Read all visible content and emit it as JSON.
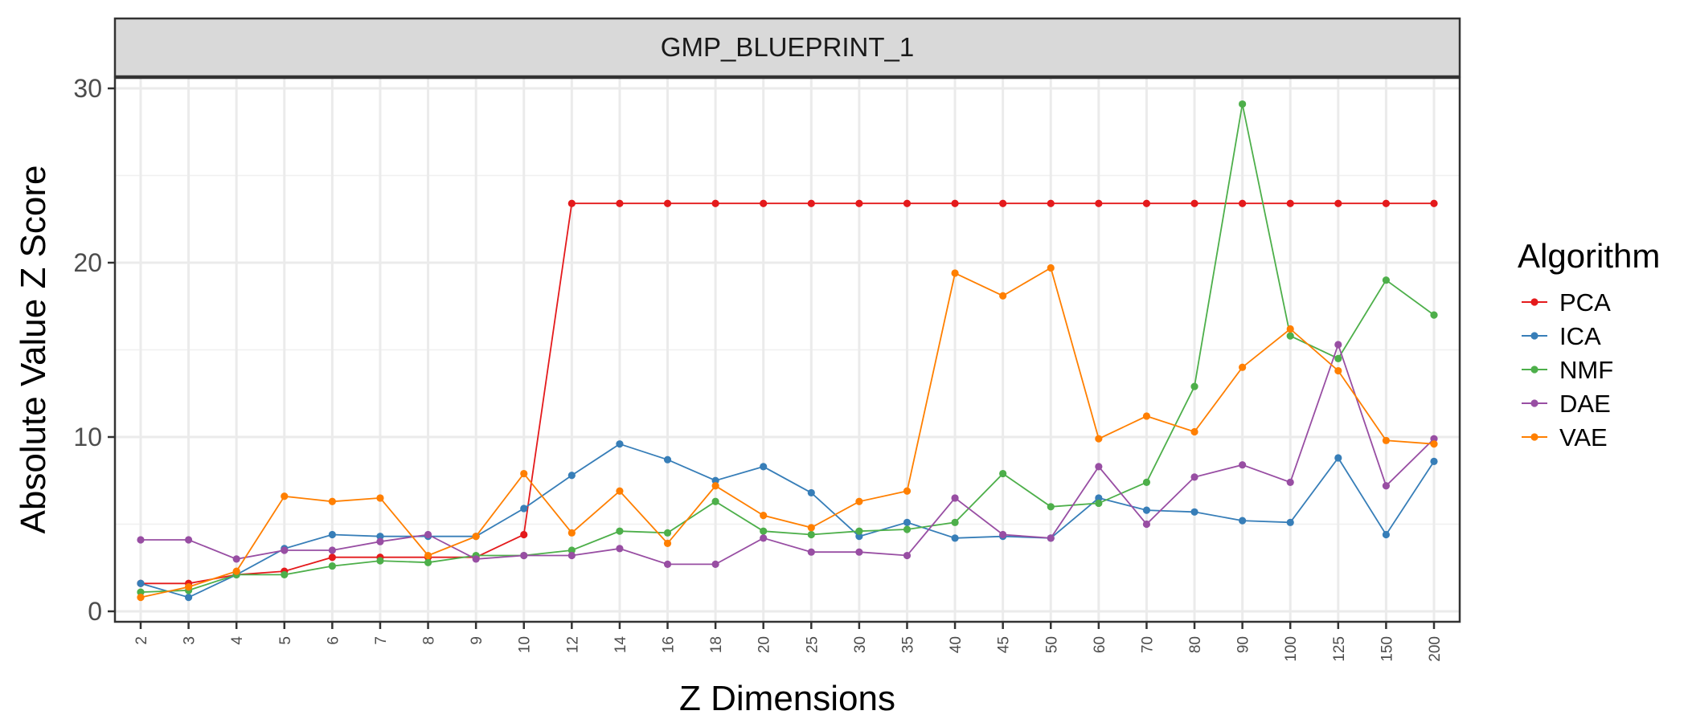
{
  "chart_data": {
    "type": "line",
    "facet_title": "GMP_BLUEPRINT_1",
    "xlabel": "Z Dimensions",
    "ylabel": "Absolute Value Z Score",
    "categories": [
      "2",
      "3",
      "4",
      "5",
      "6",
      "7",
      "8",
      "9",
      "10",
      "12",
      "14",
      "16",
      "18",
      "20",
      "25",
      "30",
      "35",
      "40",
      "45",
      "50",
      "60",
      "70",
      "80",
      "90",
      "100",
      "125",
      "150",
      "200"
    ],
    "y_ticks": [
      0,
      10,
      20,
      30
    ],
    "ylim": [
      -0.6,
      30.6
    ],
    "grid": true,
    "legend": {
      "title": "Algorithm",
      "position": "right"
    },
    "series": [
      {
        "name": "PCA",
        "color": "#e41a1c",
        "values": [
          1.6,
          1.6,
          2.1,
          2.3,
          3.1,
          3.1,
          3.1,
          3.1,
          4.4,
          23.4,
          23.4,
          23.4,
          23.4,
          23.4,
          23.4,
          23.4,
          23.4,
          23.4,
          23.4,
          23.4,
          23.4,
          23.4,
          23.4,
          23.4,
          23.4,
          23.4,
          23.4,
          23.4
        ]
      },
      {
        "name": "ICA",
        "color": "#377eb8",
        "values": [
          1.6,
          0.8,
          2.1,
          3.6,
          4.4,
          4.3,
          4.3,
          4.3,
          5.9,
          7.8,
          9.6,
          8.7,
          7.5,
          8.3,
          6.8,
          4.3,
          5.1,
          4.2,
          4.3,
          4.2,
          6.5,
          5.8,
          5.7,
          5.2,
          5.1,
          8.8,
          4.4,
          8.6
        ]
      },
      {
        "name": "NMF",
        "color": "#4daf4a",
        "values": [
          1.1,
          1.2,
          2.1,
          2.1,
          2.6,
          2.9,
          2.8,
          3.2,
          3.2,
          3.5,
          4.6,
          4.5,
          6.3,
          4.6,
          4.4,
          4.6,
          4.7,
          5.1,
          7.9,
          6.0,
          6.2,
          7.4,
          12.9,
          29.1,
          15.8,
          14.5,
          19.0,
          17.0
        ]
      },
      {
        "name": "DAE",
        "color": "#984ea3",
        "values": [
          4.1,
          4.1,
          3.0,
          3.5,
          3.5,
          4.0,
          4.4,
          3.0,
          3.2,
          3.2,
          3.6,
          2.7,
          2.7,
          4.2,
          3.4,
          3.4,
          3.2,
          6.5,
          4.4,
          4.2,
          8.3,
          5.0,
          7.7,
          8.4,
          7.4,
          15.3,
          7.2,
          9.9
        ]
      },
      {
        "name": "VAE",
        "color": "#ff7f00",
        "values": [
          0.8,
          1.4,
          2.3,
          6.6,
          6.3,
          6.5,
          3.2,
          4.3,
          7.9,
          4.5,
          6.9,
          3.9,
          7.2,
          5.5,
          4.8,
          6.3,
          6.9,
          19.4,
          18.1,
          19.7,
          9.9,
          11.2,
          10.3,
          14.0,
          16.2,
          13.8,
          9.8,
          9.6
        ]
      }
    ]
  }
}
